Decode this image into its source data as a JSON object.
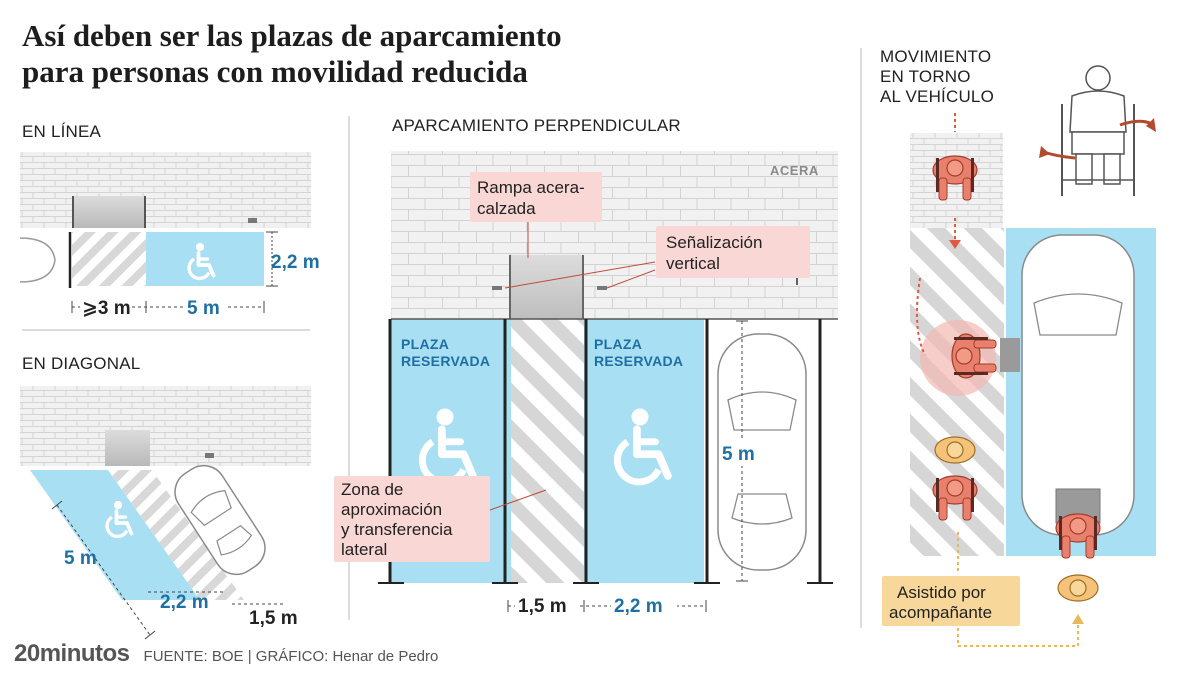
{
  "title": {
    "line1": "Así deben ser las plazas de aparcamiento",
    "line2": "para personas con movilidad reducida"
  },
  "sections": {
    "en_linea": "EN LÍNEA",
    "en_diagonal": "EN DIAGONAL",
    "perpendicular": "APARCAMIENTO PERPENDICULAR",
    "movimiento": [
      "MOVIMIENTO",
      "EN TORNO",
      "AL VEHÍCULO"
    ]
  },
  "measurements": {
    "linea_min": "⩾3 m",
    "linea_largo": "5 m",
    "linea_ancho": "2,2 m",
    "diag_largo": "5 m",
    "diag_ancho": "2,2 m",
    "diag_zona": "1,5 m",
    "perp_zona": "1,5 m",
    "perp_ancho": "2,2 m",
    "perp_largo": "5 m"
  },
  "labels": {
    "acera": "ACERA",
    "plaza_line1": "PLAZA",
    "plaza_line2": "RESERVADA",
    "rampa": [
      "Rampa acera-",
      "calzada"
    ],
    "senalizacion": [
      "Señalización",
      "vertical"
    ],
    "zona": [
      "Zona de",
      "aproximación",
      "y transferencia",
      "lateral"
    ],
    "asistido": [
      "Asistido por",
      "acompañante"
    ]
  },
  "footer": {
    "brand_num": "20",
    "brand_word": "minutos",
    "source": "FUENTE: BOE |  GRÁFICO: Henar de Pedro"
  },
  "colors": {
    "blue_zone": "#a8dff2",
    "blue_text": "#1f6fa3",
    "callout_bg": "#f9d7d5",
    "assist_bg": "#f8d79a",
    "figure": "#e9806e",
    "arrow": "#e05a43"
  }
}
